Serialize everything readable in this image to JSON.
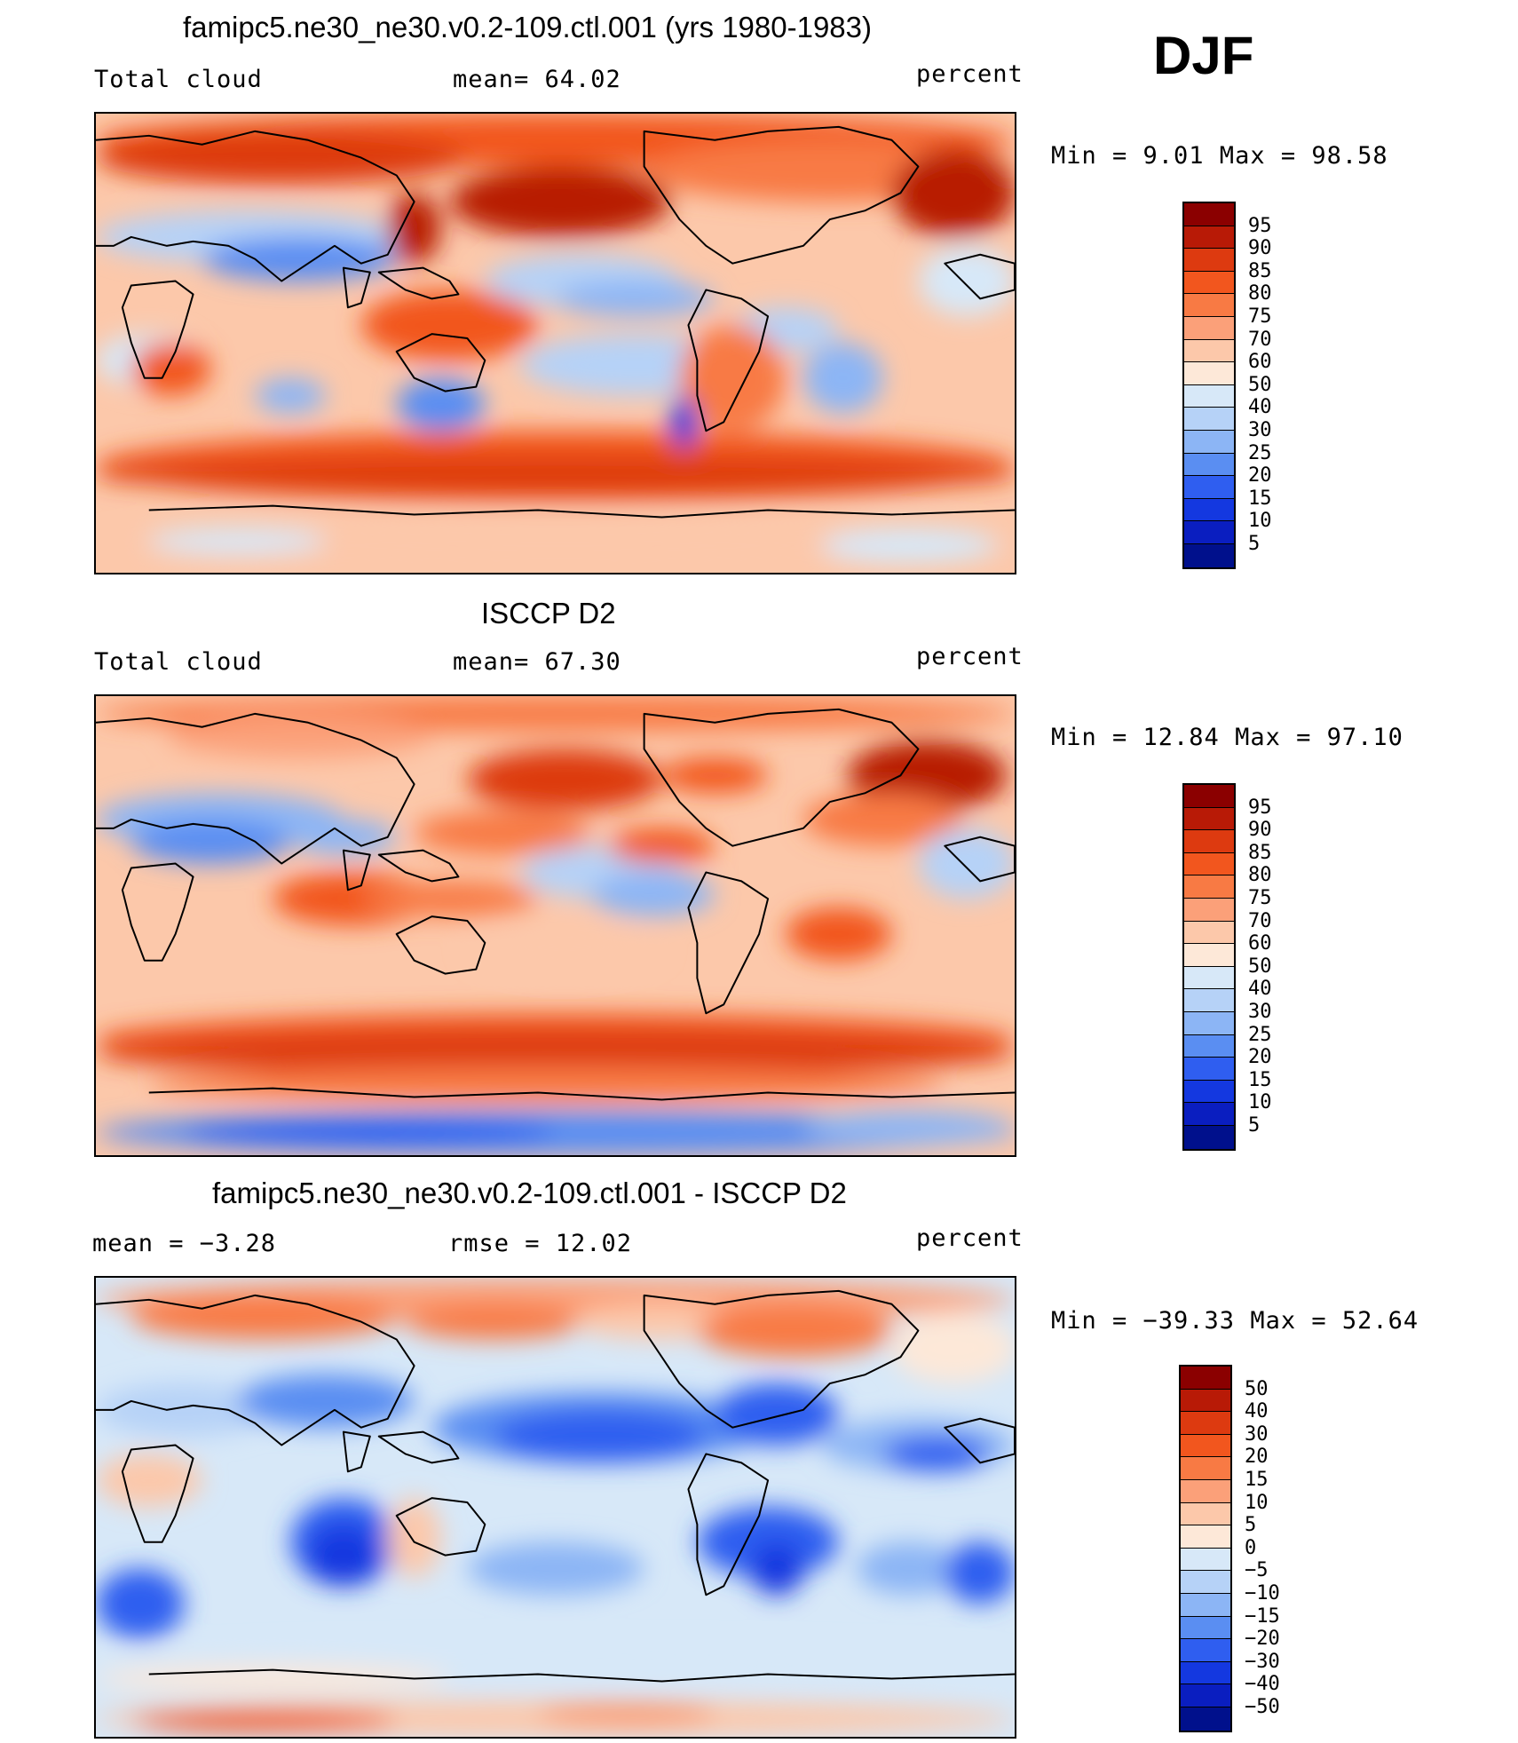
{
  "season": "DJF",
  "panels": [
    {
      "title": "famipc5.ne30_ne30.v0.2-109.ctl.001 (yrs 1980-1983)",
      "left_label": "Total cloud",
      "mid_label": "mean=   64.02",
      "units": "percent",
      "minmax": "Min =    9.01 Max =   98.58",
      "kind": "model"
    },
    {
      "title": "ISCCP D2",
      "left_label": "Total cloud",
      "mid_label": "mean=   67.30",
      "units": "percent",
      "minmax": "Min =  12.84 Max =   97.10",
      "kind": "obs"
    },
    {
      "title": "famipc5.ne30_ne30.v0.2-109.ctl.001 - ISCCP D2",
      "left_label": "mean =   −3.28",
      "mid_label": "rmse =   12.02",
      "units": "percent",
      "minmax": "Min = −39.33 Max =   52.64",
      "kind": "diff"
    }
  ],
  "colorbar_abs": {
    "labels": [
      "95",
      "90",
      "85",
      "80",
      "75",
      "70",
      "60",
      "50",
      "40",
      "30",
      "25",
      "20",
      "15",
      "10",
      "5"
    ],
    "colors": [
      "#8b0000",
      "#b81a06",
      "#dd3a10",
      "#f2561e",
      "#f87a44",
      "#fba079",
      "#fcc8aa",
      "#fde8d8",
      "#d7e8f8",
      "#b6d2f7",
      "#8cb5f5",
      "#5a8ef2",
      "#2f5ef0",
      "#1438e0",
      "#0a1ec0",
      "#00108c"
    ]
  },
  "colorbar_diff": {
    "labels": [
      "50",
      "40",
      "30",
      "20",
      "15",
      "10",
      "5",
      "0",
      "−5",
      "−10",
      "−15",
      "−20",
      "−30",
      "−40",
      "−50"
    ],
    "colors": [
      "#8b0000",
      "#b81a06",
      "#dd3a10",
      "#f2561e",
      "#f87a44",
      "#fba079",
      "#fcc8aa",
      "#fde8d8",
      "#d7e8f8",
      "#b6d2f7",
      "#8cb5f5",
      "#5a8ef2",
      "#2f5ef0",
      "#1438e0",
      "#0a1ec0",
      "#00108c"
    ]
  }
}
